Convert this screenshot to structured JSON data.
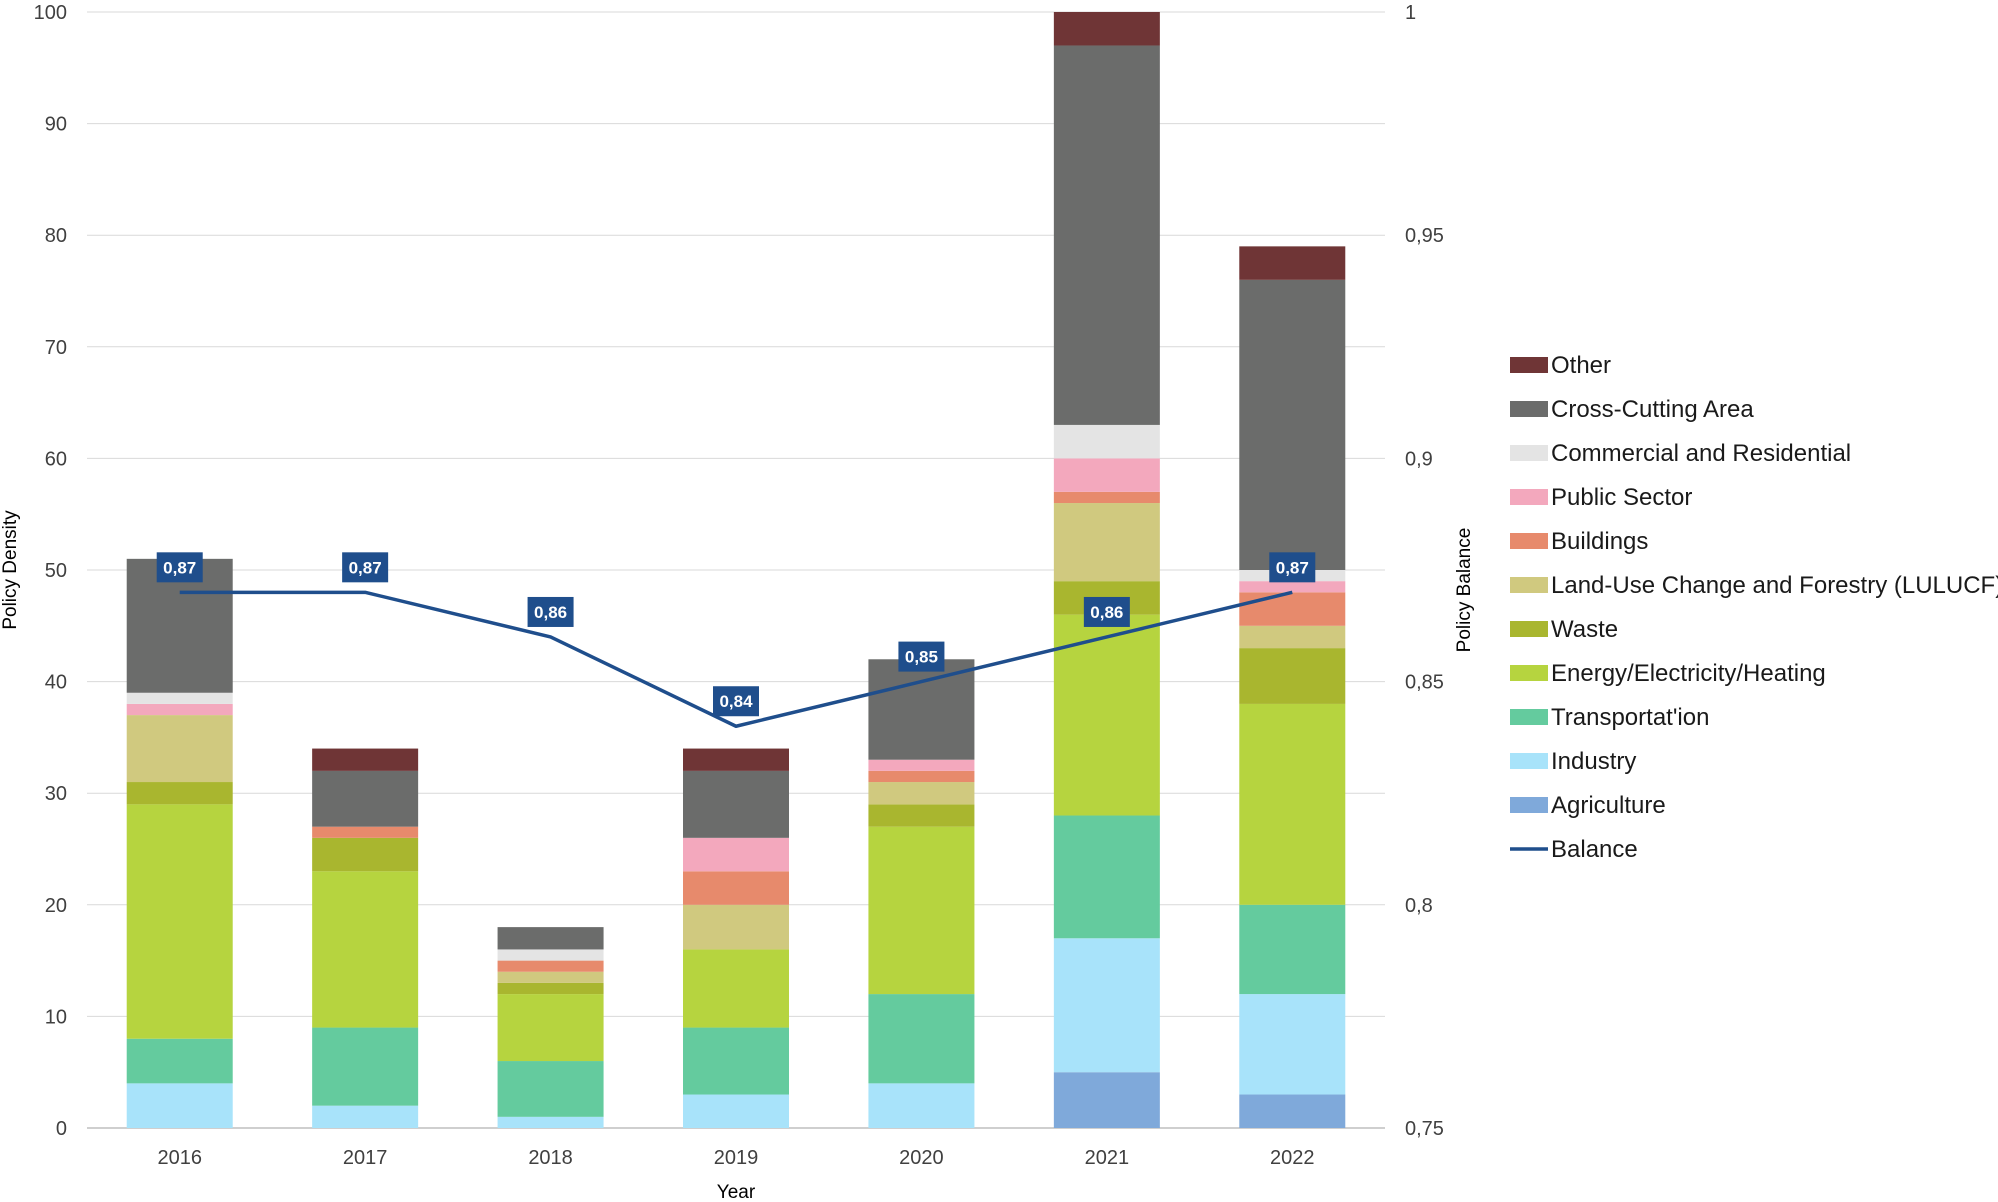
{
  "chart_data": {
    "type": "bar",
    "stacked": true,
    "title": "",
    "xlabel": "Year",
    "ylabel": "Policy Density",
    "y2label": "Policy Balance",
    "ylim": [
      0,
      100
    ],
    "y_ticks": [
      0,
      10,
      20,
      30,
      40,
      50,
      60,
      70,
      80,
      90,
      100
    ],
    "y2lim": [
      0.75,
      1.0
    ],
    "y2_ticks": [
      {
        "value": 0.75,
        "label": "0,75"
      },
      {
        "value": 0.8,
        "label": "0,8"
      },
      {
        "value": 0.85,
        "label": "0,85"
      },
      {
        "value": 0.9,
        "label": "0,9"
      },
      {
        "value": 0.95,
        "label": "0,95"
      },
      {
        "value": 1.0,
        "label": "1"
      }
    ],
    "gridlines": true,
    "legend_position": "right",
    "categories": [
      "2016",
      "2017",
      "2018",
      "2019",
      "2020",
      "2021",
      "2022"
    ],
    "series": [
      {
        "name": "Agriculture",
        "color": "#7fa9da",
        "values": [
          0,
          0,
          0,
          0,
          0,
          5,
          3
        ]
      },
      {
        "name": "Industry",
        "color": "#a8e3fa",
        "values": [
          4,
          2,
          1,
          3,
          4,
          12,
          9
        ]
      },
      {
        "name": "Transportat'ion",
        "color": "#64cb9e",
        "values": [
          4,
          7,
          5,
          6,
          8,
          11,
          8
        ]
      },
      {
        "name": "Energy/Electricity/Heating",
        "color": "#b6d43f",
        "values": [
          21,
          14,
          6,
          7,
          15,
          18,
          18
        ]
      },
      {
        "name": "Waste",
        "color": "#a9b62f",
        "values": [
          2,
          3,
          1,
          0,
          2,
          3,
          5
        ]
      },
      {
        "name": "Land-Use Change and Forestry  (LULUCF)",
        "color": "#d0c97f",
        "values": [
          6,
          0,
          1,
          4,
          2,
          7,
          2
        ]
      },
      {
        "name": "Buildings",
        "color": "#e78a6c",
        "values": [
          0,
          1,
          1,
          3,
          1,
          1,
          3
        ]
      },
      {
        "name": "Public Sector",
        "color": "#f3a8bd",
        "values": [
          1,
          0,
          0,
          3,
          1,
          3,
          1
        ]
      },
      {
        "name": "Commercial and Residential",
        "color": "#e4e4e4",
        "values": [
          1,
          0,
          1,
          0,
          0,
          3,
          1
        ]
      },
      {
        "name": "Cross-Cutting Area",
        "color": "#6b6c6b",
        "values": [
          12,
          5,
          2,
          6,
          9,
          34,
          26
        ]
      },
      {
        "name": "Other",
        "color": "#6f3536",
        "values": [
          0,
          2,
          0,
          2,
          0,
          3,
          3
        ]
      }
    ],
    "line_series": {
      "name": "Balance",
      "color": "#1f4e8c",
      "axis": "secondary",
      "values": [
        0.87,
        0.87,
        0.86,
        0.84,
        0.85,
        0.86,
        0.87
      ],
      "labels": [
        "0,87",
        "0,87",
        "0,86",
        "0,84",
        "0,85",
        "0,86",
        "0,87"
      ]
    },
    "legend": [
      {
        "name": "Other",
        "color": "#6f3536",
        "kind": "box"
      },
      {
        "name": "Cross-Cutting Area",
        "color": "#6b6c6b",
        "kind": "box"
      },
      {
        "name": "Commercial and Residential",
        "color": "#e4e4e4",
        "kind": "box"
      },
      {
        "name": "Public Sector",
        "color": "#f3a8bd",
        "kind": "box"
      },
      {
        "name": "Buildings",
        "color": "#e78a6c",
        "kind": "box"
      },
      {
        "name": "Land-Use Change and Forestry  (LULUCF)",
        "color": "#d0c97f",
        "kind": "box"
      },
      {
        "name": "Waste",
        "color": "#a9b62f",
        "kind": "box"
      },
      {
        "name": "Energy/Electricity/Heating",
        "color": "#b6d43f",
        "kind": "box"
      },
      {
        "name": "Transportat'ion",
        "color": "#64cb9e",
        "kind": "box"
      },
      {
        "name": "Industry",
        "color": "#a8e3fa",
        "kind": "box"
      },
      {
        "name": "Agriculture",
        "color": "#7fa9da",
        "kind": "box"
      },
      {
        "name": "Balance",
        "color": "#1f4e8c",
        "kind": "line"
      }
    ]
  }
}
